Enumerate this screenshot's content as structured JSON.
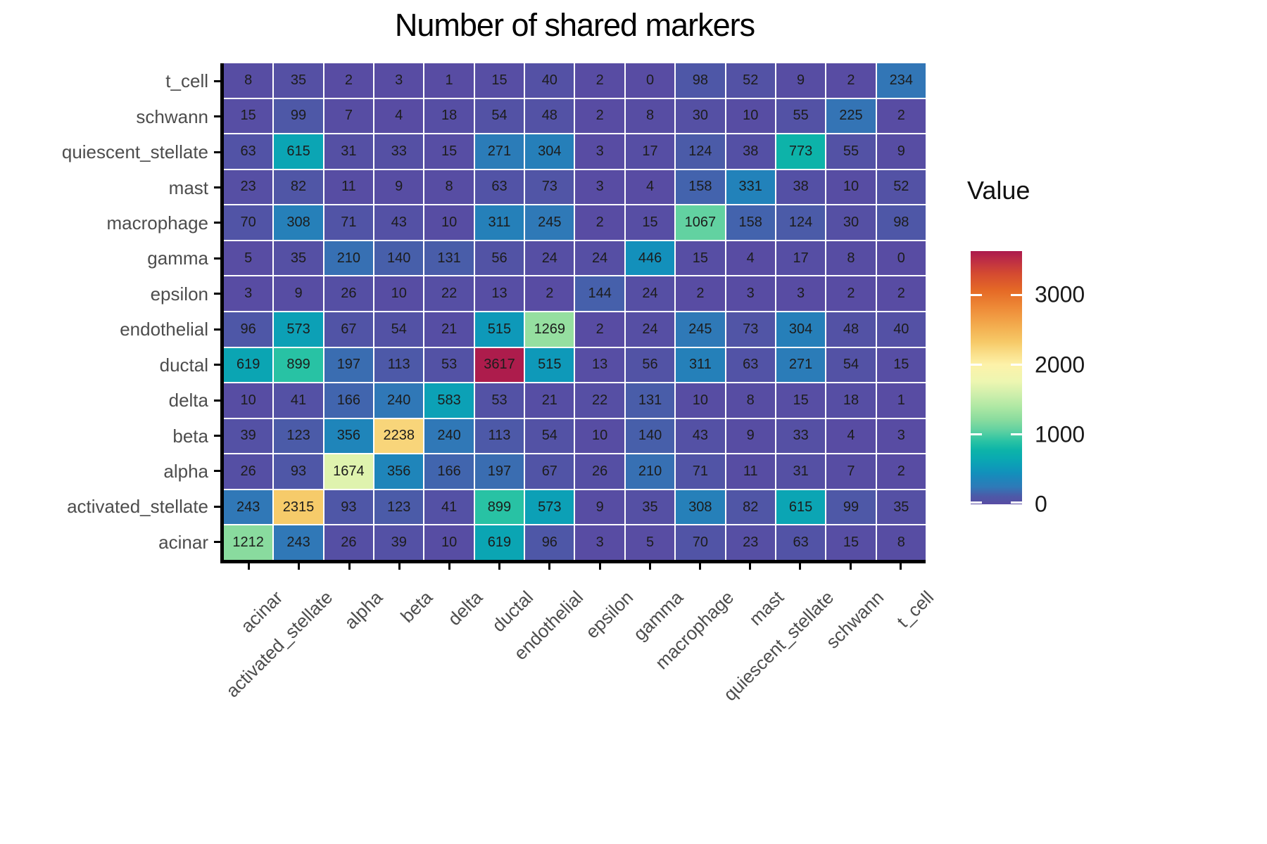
{
  "title": "Number of shared markers",
  "legend": {
    "title": "Value",
    "tick_values": [
      0,
      1000,
      2000,
      3000
    ]
  },
  "colors": {
    "axis_text": "#4d4d4d",
    "cell_text": "#1c1c1c",
    "axis_line": "#000000",
    "grid_gap": "#ffffff"
  },
  "chart_data": {
    "type": "heatmap",
    "title": "Number of shared markers",
    "legend_title": "Value",
    "grid": true,
    "legend_position": "right",
    "x_categories": [
      "acinar",
      "activated_stellate",
      "alpha",
      "beta",
      "delta",
      "ductal",
      "endothelial",
      "epsilon",
      "gamma",
      "macrophage",
      "mast",
      "quiescent_stellate",
      "schwann",
      "t_cell"
    ],
    "y_categories_top_to_bottom": [
      "t_cell",
      "schwann",
      "quiescent_stellate",
      "mast",
      "macrophage",
      "gamma",
      "epsilon",
      "endothelial",
      "ductal",
      "delta",
      "beta",
      "alpha",
      "activated_stellate",
      "acinar"
    ],
    "values_rows_top_to_bottom": [
      [
        8,
        35,
        2,
        3,
        1,
        15,
        40,
        2,
        0,
        98,
        52,
        9,
        2,
        234
      ],
      [
        15,
        99,
        7,
        4,
        18,
        54,
        48,
        2,
        8,
        30,
        10,
        55,
        225,
        2
      ],
      [
        63,
        615,
        31,
        33,
        15,
        271,
        304,
        3,
        17,
        124,
        38,
        773,
        55,
        9
      ],
      [
        23,
        82,
        11,
        9,
        8,
        63,
        73,
        3,
        4,
        158,
        331,
        38,
        10,
        52
      ],
      [
        70,
        308,
        71,
        43,
        10,
        311,
        245,
        2,
        15,
        1067,
        158,
        124,
        30,
        98
      ],
      [
        5,
        35,
        210,
        140,
        131,
        56,
        24,
        24,
        446,
        15,
        4,
        17,
        8,
        0
      ],
      [
        3,
        9,
        26,
        10,
        22,
        13,
        2,
        144,
        24,
        2,
        3,
        3,
        2,
        2
      ],
      [
        96,
        573,
        67,
        54,
        21,
        515,
        1269,
        2,
        24,
        245,
        73,
        304,
        48,
        40
      ],
      [
        619,
        899,
        197,
        113,
        53,
        3617,
        515,
        13,
        56,
        311,
        63,
        271,
        54,
        15
      ],
      [
        10,
        41,
        166,
        240,
        583,
        53,
        21,
        22,
        131,
        10,
        8,
        15,
        18,
        1
      ],
      [
        39,
        123,
        356,
        2238,
        240,
        113,
        54,
        10,
        140,
        43,
        9,
        33,
        4,
        3
      ],
      [
        26,
        93,
        1674,
        356,
        166,
        197,
        67,
        26,
        210,
        71,
        11,
        31,
        7,
        2
      ],
      [
        243,
        2315,
        93,
        123,
        41,
        899,
        573,
        9,
        35,
        308,
        82,
        615,
        99,
        35
      ],
      [
        1212,
        243,
        26,
        39,
        10,
        619,
        96,
        3,
        5,
        70,
        23,
        63,
        15,
        8
      ]
    ],
    "colorbar_ticks": [
      0,
      1000,
      2000,
      3000
    ],
    "vmin": 0,
    "vmax": 3630,
    "color_stops": [
      {
        "v": 0,
        "c": "#584ca3"
      },
      {
        "v": 120,
        "c": "#4c5aa8"
      },
      {
        "v": 250,
        "c": "#2e7ab8"
      },
      {
        "v": 380,
        "c": "#1b87bb"
      },
      {
        "v": 460,
        "c": "#1192bb"
      },
      {
        "v": 560,
        "c": "#0c9eb7"
      },
      {
        "v": 660,
        "c": "#0aaab1"
      },
      {
        "v": 780,
        "c": "#0db4a8"
      },
      {
        "v": 900,
        "c": "#28c2a4"
      },
      {
        "v": 1070,
        "c": "#63d2a1"
      },
      {
        "v": 1220,
        "c": "#8bdc9e"
      },
      {
        "v": 1380,
        "c": "#abe7a3"
      },
      {
        "v": 1560,
        "c": "#cceeab"
      },
      {
        "v": 1760,
        "c": "#edf6b1"
      },
      {
        "v": 2000,
        "c": "#fdf2a9"
      },
      {
        "v": 2160,
        "c": "#fadf8a"
      },
      {
        "v": 2330,
        "c": "#f6c967"
      },
      {
        "v": 2560,
        "c": "#f3ac4e"
      },
      {
        "v": 2810,
        "c": "#ee8b38"
      },
      {
        "v": 3060,
        "c": "#e56a26"
      },
      {
        "v": 3310,
        "c": "#d44a31"
      },
      {
        "v": 3500,
        "c": "#bd2d45"
      },
      {
        "v": 3630,
        "c": "#ab1a4d"
      }
    ]
  }
}
